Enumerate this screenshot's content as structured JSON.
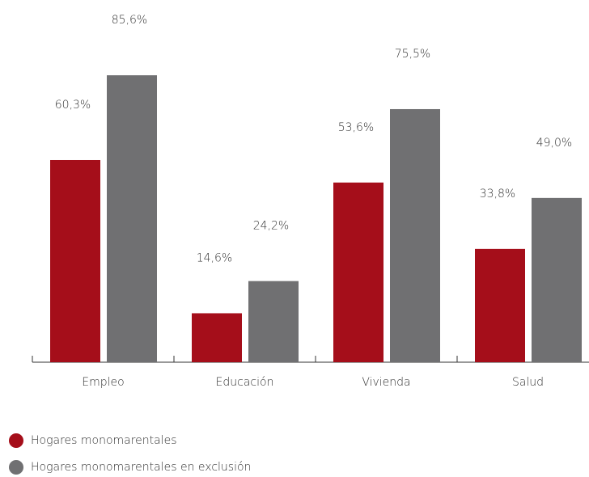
{
  "chart_data": {
    "type": "bar",
    "categories": [
      "Empleo",
      "Educación",
      "Vivienda",
      "Salud"
    ],
    "series": [
      {
        "name": "Hogares monomarentales",
        "color": "#a50e1a",
        "values": [
          60.3,
          14.6,
          53.6,
          33.8
        ],
        "value_labels": [
          "60,3%",
          "14,6%",
          "53,6%",
          "33,8%"
        ]
      },
      {
        "name": "Hogares monomarentales en exclusión",
        "color": "#707072",
        "values": [
          85.6,
          24.2,
          75.5,
          49.0
        ],
        "value_labels": [
          "85,6%",
          "24,2%",
          "75,5%",
          "49,0%"
        ]
      }
    ]
  }
}
